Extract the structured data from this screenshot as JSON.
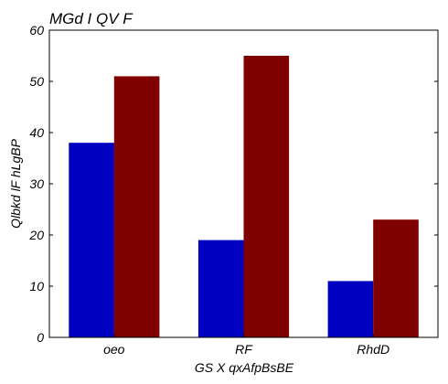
{
  "chart_data": {
    "type": "bar",
    "title": "MGd  I QV F",
    "xlabel": "GS X qxAfpBsBE",
    "ylabel": "Qlbkd lF hLgBP",
    "categories": [
      "oeo",
      "RF",
      "RhdD"
    ],
    "series": [
      {
        "values": [
          38,
          19,
          11
        ]
      },
      {
        "values": [
          51,
          55,
          23
        ]
      }
    ],
    "colors": [
      "#0000c0",
      "#800000"
    ],
    "ylim": [
      0,
      60
    ],
    "yticks": [
      0,
      10,
      20,
      30,
      40,
      50,
      60
    ],
    "grid": false,
    "legend": "none"
  }
}
